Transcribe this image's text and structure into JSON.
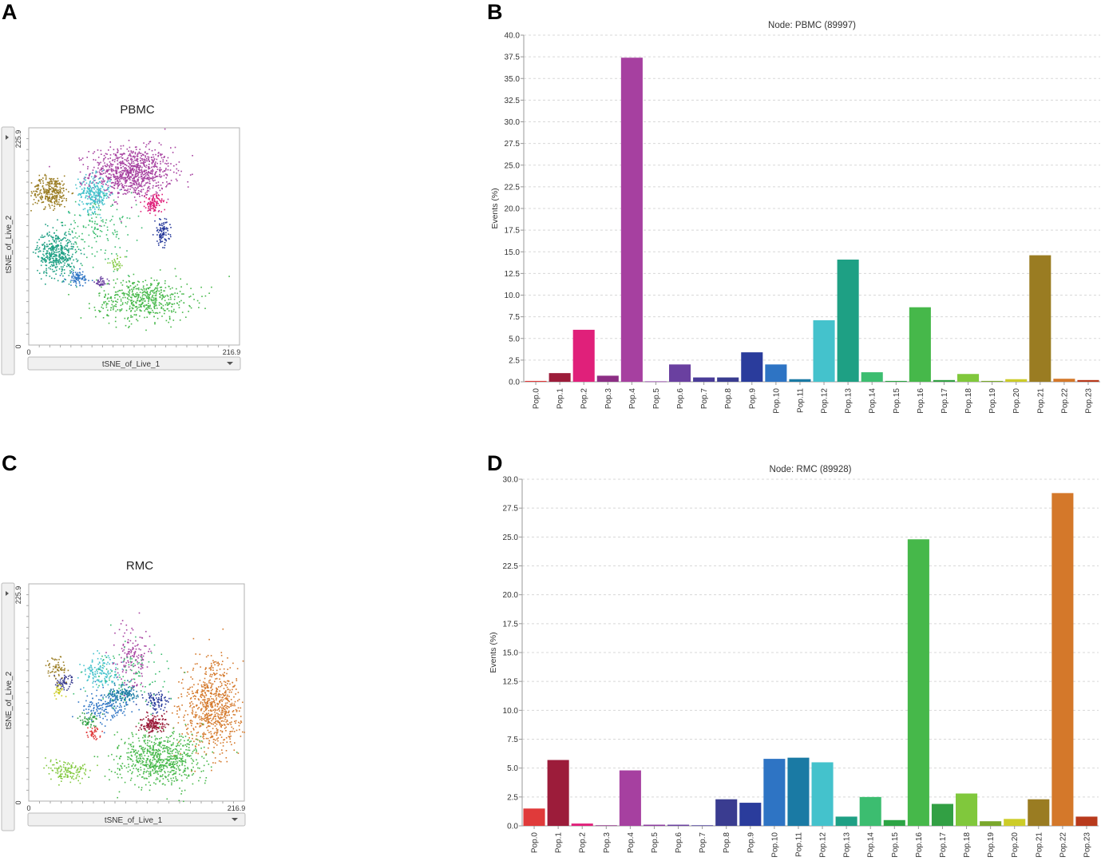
{
  "panels": {
    "a": {
      "letter": "A"
    },
    "b": {
      "letter": "B"
    },
    "c": {
      "letter": "C"
    },
    "d": {
      "letter": "D"
    }
  },
  "chart_data": [
    {
      "id": "tsne_pbmc",
      "type": "scatter",
      "title": "PBMC",
      "xlabel": "tSNE_of_Live_1",
      "ylabel": "tSNE_of_Live_2",
      "xlim": [
        0,
        216.9
      ],
      "ylim": [
        0,
        225.9
      ],
      "x_tick_labels": [
        "0",
        "216.9"
      ],
      "y_tick_labels": [
        "0",
        "225.9"
      ],
      "clusters": [
        {
          "name": "Pop.4",
          "color": "#a640a0",
          "cx": 105,
          "cy": 180,
          "rx": 38,
          "ry": 24,
          "n": 900
        },
        {
          "name": "Pop.21",
          "color": "#9a7c22",
          "cx": 22,
          "cy": 160,
          "rx": 18,
          "ry": 15,
          "n": 300
        },
        {
          "name": "Pop.12",
          "color": "#44c2cc",
          "cx": 67,
          "cy": 158,
          "rx": 15,
          "ry": 17,
          "n": 260
        },
        {
          "name": "Pop.13",
          "color": "#1ea084",
          "cx": 28,
          "cy": 96,
          "rx": 18,
          "ry": 22,
          "n": 420
        },
        {
          "name": "Pop.16",
          "color": "#46b84a",
          "cx": 118,
          "cy": 48,
          "rx": 44,
          "ry": 20,
          "n": 520
        },
        {
          "name": "Pop.2",
          "color": "#e0207a",
          "cx": 128,
          "cy": 148,
          "rx": 8,
          "ry": 9,
          "n": 110
        },
        {
          "name": "Pop.9",
          "color": "#2a3c9c",
          "cx": 137,
          "cy": 118,
          "rx": 7,
          "ry": 12,
          "n": 100
        },
        {
          "name": "Pop.10",
          "color": "#2e74c4",
          "cx": 50,
          "cy": 70,
          "rx": 12,
          "ry": 7,
          "n": 80
        },
        {
          "name": "Pop.6",
          "color": "#6a40a0",
          "cx": 74,
          "cy": 66,
          "rx": 6,
          "ry": 5,
          "n": 40
        },
        {
          "name": "Pop.18",
          "color": "#80c83c",
          "cx": 90,
          "cy": 85,
          "rx": 8,
          "ry": 6,
          "n": 30
        },
        {
          "name": "Pop.14",
          "color": "#3cbd70",
          "cx": 70,
          "cy": 120,
          "rx": 35,
          "ry": 25,
          "n": 140
        }
      ]
    },
    {
      "id": "bar_pbmc",
      "type": "bar",
      "title": "Node: PBMC (89997)",
      "xlabel": "",
      "ylabel": "Events (%)",
      "ylim": [
        0,
        40
      ],
      "grid": true,
      "y_ticks": [
        "0.0",
        "2.5",
        "5.0",
        "7.5",
        "10.0",
        "12.5",
        "15.0",
        "17.5",
        "20.0",
        "22.5",
        "25.0",
        "27.5",
        "30.0",
        "32.5",
        "35.0",
        "37.5",
        "40.0"
      ],
      "categories": [
        "Pop.0",
        "Pop.1",
        "Pop.2",
        "Pop.3",
        "Pop.4",
        "Pop.5",
        "Pop.6",
        "Pop.7",
        "Pop.8",
        "Pop.9",
        "Pop.10",
        "Pop.11",
        "Pop.12",
        "Pop.13",
        "Pop.14",
        "Pop.15",
        "Pop.16",
        "Pop.17",
        "Pop.18",
        "Pop.19",
        "Pop.20",
        "Pop.21",
        "Pop.22",
        "Pop.23"
      ],
      "values": [
        0.1,
        1.0,
        6.0,
        0.7,
        37.4,
        0.05,
        2.0,
        0.5,
        0.5,
        3.4,
        2.0,
        0.3,
        7.1,
        14.1,
        1.1,
        0.1,
        8.6,
        0.2,
        0.9,
        0.1,
        0.3,
        14.6,
        0.35,
        0.2
      ],
      "colors": [
        "#e03a3a",
        "#9c1c3a",
        "#e0207a",
        "#8c2e84",
        "#a640a0",
        "#8c3aa0",
        "#6a40a0",
        "#4a3c98",
        "#3a3c90",
        "#2a3c9c",
        "#2e74c4",
        "#1a7aa4",
        "#44c2cc",
        "#1ea084",
        "#3cbd70",
        "#2ca444",
        "#46b84a",
        "#32a044",
        "#80c83c",
        "#7aa82c",
        "#cccc28",
        "#9a7c22",
        "#d4782a",
        "#b83a1c"
      ]
    },
    {
      "id": "tsne_rmc",
      "type": "scatter",
      "title": "RMC",
      "xlabel": "tSNE_of_Live_1",
      "ylabel": "tSNE_of_Live_2",
      "xlim": [
        0,
        216.9
      ],
      "ylim": [
        0,
        225.9
      ],
      "x_tick_labels": [
        "0",
        "216.9"
      ],
      "y_tick_labels": [
        "0",
        "225.9"
      ],
      "clusters": [
        {
          "name": "Pop.22",
          "color": "#d4782a",
          "cx": 185,
          "cy": 98,
          "rx": 28,
          "ry": 42,
          "n": 720
        },
        {
          "name": "Pop.16",
          "color": "#46b84a",
          "cx": 130,
          "cy": 45,
          "rx": 38,
          "ry": 25,
          "n": 700
        },
        {
          "name": "Pop.12",
          "color": "#44c2cc",
          "cx": 72,
          "cy": 135,
          "rx": 16,
          "ry": 16,
          "n": 150
        },
        {
          "name": "Pop.10",
          "color": "#2e74c4",
          "cx": 75,
          "cy": 100,
          "rx": 22,
          "ry": 15,
          "n": 160
        },
        {
          "name": "Pop.11",
          "color": "#1a7aa4",
          "cx": 95,
          "cy": 112,
          "rx": 14,
          "ry": 10,
          "n": 140
        },
        {
          "name": "Pop.1",
          "color": "#9c1c3a",
          "cx": 124,
          "cy": 80,
          "rx": 12,
          "ry": 9,
          "n": 160
        },
        {
          "name": "Pop.4",
          "color": "#a640a0",
          "cx": 103,
          "cy": 150,
          "rx": 15,
          "ry": 28,
          "n": 140
        },
        {
          "name": "Pop.9",
          "color": "#2a3c9c",
          "cx": 128,
          "cy": 105,
          "rx": 11,
          "ry": 9,
          "n": 90
        },
        {
          "name": "Pop.8",
          "color": "#3a3c90",
          "cx": 35,
          "cy": 125,
          "rx": 8,
          "ry": 7,
          "n": 60
        },
        {
          "name": "Pop.14",
          "color": "#3cbd70",
          "cx": 100,
          "cy": 130,
          "rx": 40,
          "ry": 30,
          "n": 100
        },
        {
          "name": "Pop.18",
          "color": "#80c83c",
          "cx": 38,
          "cy": 32,
          "rx": 18,
          "ry": 10,
          "n": 130
        },
        {
          "name": "Pop.21",
          "color": "#9a7c22",
          "cx": 28,
          "cy": 140,
          "rx": 10,
          "ry": 12,
          "n": 60
        },
        {
          "name": "Pop.0",
          "color": "#e03a3a",
          "cx": 65,
          "cy": 72,
          "rx": 7,
          "ry": 6,
          "n": 40
        },
        {
          "name": "Pop.20",
          "color": "#cccc28",
          "cx": 30,
          "cy": 116,
          "rx": 5,
          "ry": 6,
          "n": 30
        },
        {
          "name": "Pop.17",
          "color": "#32a044",
          "cx": 60,
          "cy": 85,
          "rx": 9,
          "ry": 7,
          "n": 50
        }
      ]
    },
    {
      "id": "bar_rmc",
      "type": "bar",
      "title": "Node: RMC (89928)",
      "xlabel": "",
      "ylabel": "Events (%)",
      "ylim": [
        0,
        30
      ],
      "grid": true,
      "y_ticks": [
        "0.0",
        "2.5",
        "5.0",
        "7.5",
        "10.0",
        "12.5",
        "15.0",
        "17.5",
        "20.0",
        "22.5",
        "25.0",
        "27.5",
        "30.0"
      ],
      "categories": [
        "Pop.0",
        "Pop.1",
        "Pop.2",
        "Pop.3",
        "Pop.4",
        "Pop.5",
        "Pop.6",
        "Pop.7",
        "Pop.8",
        "Pop.9",
        "Pop.10",
        "Pop.11",
        "Pop.12",
        "Pop.13",
        "Pop.14",
        "Pop.15",
        "Pop.16",
        "Pop.17",
        "Pop.18",
        "Pop.19",
        "Pop.20",
        "Pop.21",
        "Pop.22",
        "Pop.23"
      ],
      "values": [
        1.5,
        5.7,
        0.2,
        0.05,
        4.8,
        0.1,
        0.1,
        0.05,
        2.3,
        2.0,
        5.8,
        5.9,
        5.5,
        0.8,
        2.5,
        0.5,
        24.8,
        1.9,
        2.8,
        0.4,
        0.6,
        2.3,
        28.8,
        0.8
      ],
      "colors": [
        "#e03a3a",
        "#9c1c3a",
        "#e0207a",
        "#8c2e84",
        "#a640a0",
        "#8c3aa0",
        "#6a40a0",
        "#4a3c98",
        "#3a3c90",
        "#2a3c9c",
        "#2e74c4",
        "#1a7aa4",
        "#44c2cc",
        "#1ea084",
        "#3cbd70",
        "#2ca444",
        "#46b84a",
        "#32a044",
        "#80c83c",
        "#7aa82c",
        "#cccc28",
        "#9a7c22",
        "#d4782a",
        "#b83a1c"
      ]
    }
  ]
}
